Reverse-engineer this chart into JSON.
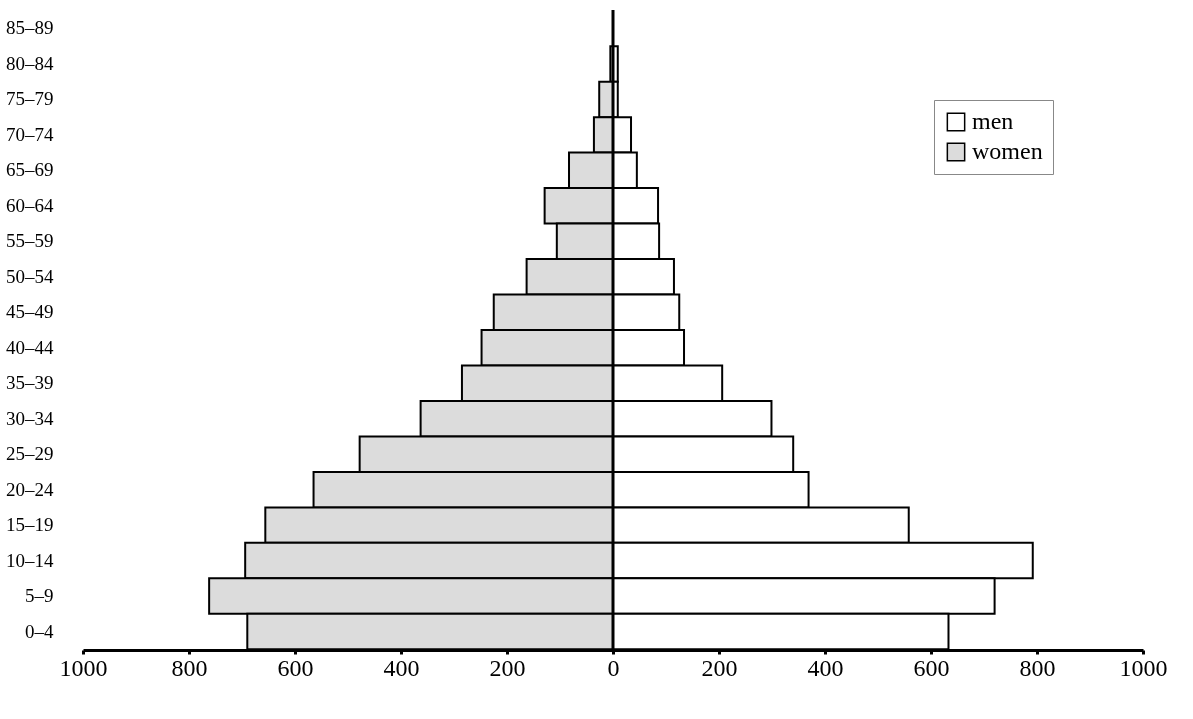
{
  "chart_data": {
    "type": "bar",
    "orientation": "horizontal",
    "categories": [
      "85–89",
      "80–84",
      "75–79",
      "70–74",
      "65–69",
      "60–64",
      "55–59",
      "50–54",
      "45–49",
      "40–44",
      "35–39",
      "30–34",
      "25–29",
      "20–24",
      "15–19",
      "10–14",
      "5–9",
      "0–4"
    ],
    "series": [
      {
        "name": "men",
        "color": "#ffffff",
        "values": [
          null,
          9,
          9,
          34,
          45,
          85,
          87,
          115,
          125,
          134,
          206,
          299,
          340,
          369,
          558,
          792,
          720,
          633
        ]
      },
      {
        "name": "women",
        "color": "#dcdcdc",
        "values": [
          null,
          -5,
          -26,
          -36,
          -83,
          -129,
          -106,
          -163,
          -225,
          -248,
          -285,
          -363,
          -478,
          -565,
          -656,
          -694,
          -762,
          -690
        ]
      }
    ],
    "xlim": [
      -1000,
      1000
    ],
    "xticks": [
      {
        "value": -1000,
        "label": "1000"
      },
      {
        "value": -800,
        "label": "800"
      },
      {
        "value": -600,
        "label": "600"
      },
      {
        "value": -400,
        "label": "400"
      },
      {
        "value": -200,
        "label": "200"
      },
      0,
      200,
      400,
      600,
      800,
      1000
    ],
    "ref_lines": [
      {
        "axis": "x",
        "value": 0,
        "color": "#000000"
      }
    ],
    "legend": "top right",
    "grid": false,
    "stacked": true
  }
}
